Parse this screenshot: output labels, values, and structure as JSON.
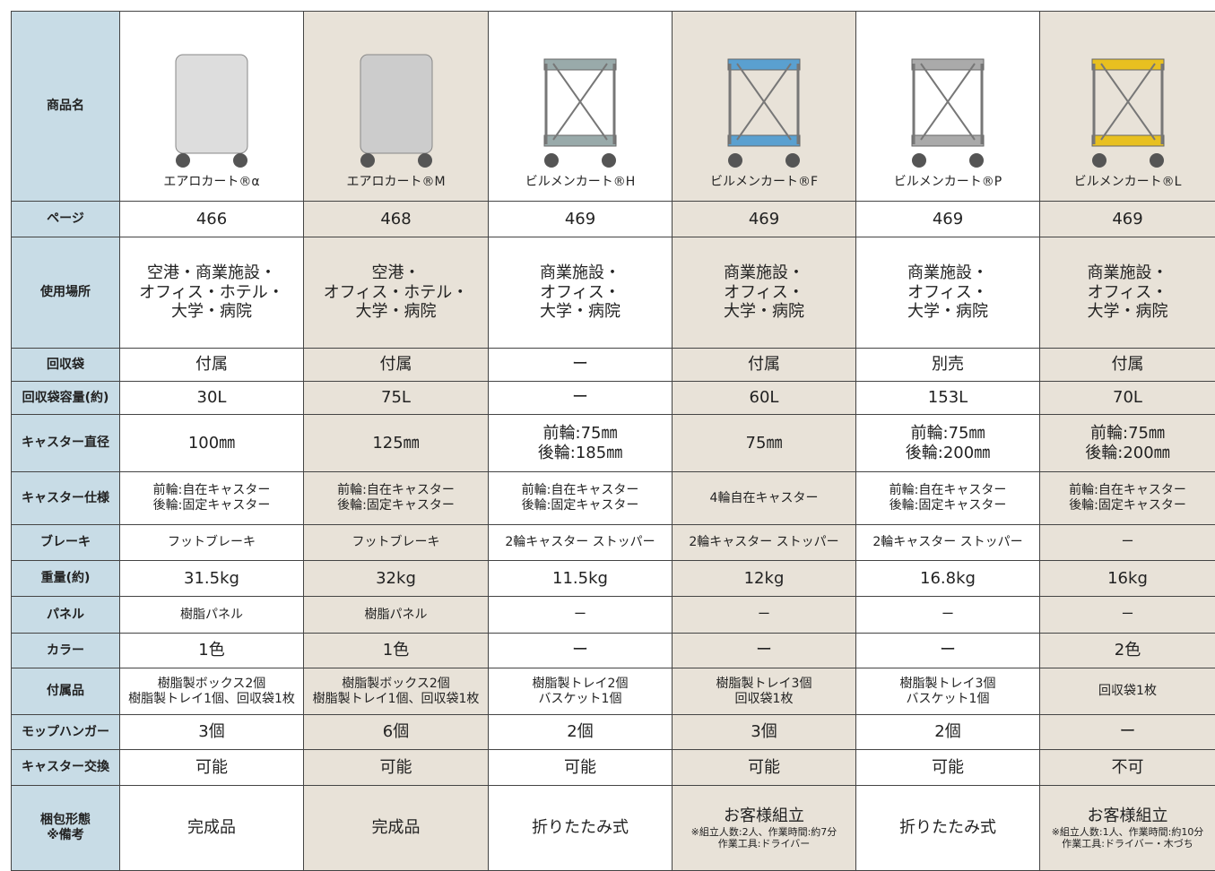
{
  "header": {
    "label": "商品名",
    "products": [
      "エアロカート®α",
      "エアロカート®M",
      "ビルメンカート®H",
      "ビルメンカート®F",
      "ビルメンカート®P",
      "ビルメンカート®L"
    ]
  },
  "rows": [
    {
      "label": "ページ",
      "cells": [
        "466",
        "468",
        "469",
        "469",
        "469",
        "469"
      ]
    },
    {
      "label": "使用場所",
      "cells": [
        [
          "空港・商業施設・",
          "オフィス・ホテル・",
          "大学・病院"
        ],
        [
          "空港・",
          "オフィス・ホテル・",
          "大学・病院"
        ],
        [
          "商業施設・",
          "オフィス・",
          "大学・病院"
        ],
        [
          "商業施設・",
          "オフィス・",
          "大学・病院"
        ],
        [
          "商業施設・",
          "オフィス・",
          "大学・病院"
        ],
        [
          "商業施設・",
          "オフィス・",
          "大学・病院"
        ]
      ]
    },
    {
      "label": "回収袋",
      "cells": [
        "付属",
        "付属",
        "ー",
        "付属",
        "別売",
        "付属"
      ]
    },
    {
      "label": "回収袋容量(約)",
      "cells": [
        "30L",
        "75L",
        "ー",
        "60L",
        "153L",
        "70L"
      ]
    },
    {
      "label": "キャスター直径",
      "cells": [
        "100㎜",
        "125㎜",
        [
          "前輪:75㎜",
          "後輪:185㎜"
        ],
        "75㎜",
        [
          "前輪:75㎜",
          "後輪:200㎜"
        ],
        [
          "前輪:75㎜",
          "後輪:200㎜"
        ]
      ]
    },
    {
      "label": "キャスター仕様",
      "cells": [
        [
          "前輪:自在キャスター",
          "後輪:固定キャスター"
        ],
        [
          "前輪:自在キャスター",
          "後輪:固定キャスター"
        ],
        [
          "前輪:自在キャスター",
          "後輪:固定キャスター"
        ],
        "4輪自在キャスター",
        [
          "前輪:自在キャスター",
          "後輪:固定キャスター"
        ],
        [
          "前輪:自在キャスター",
          "後輪:固定キャスター"
        ]
      ]
    },
    {
      "label": "ブレーキ",
      "cells": [
        "フットブレーキ",
        "フットブレーキ",
        "2輪キャスター ストッパー",
        "2輪キャスター ストッパー",
        "2輪キャスター ストッパー",
        "ー"
      ]
    },
    {
      "label": "重量(約)",
      "cells": [
        "31.5kg",
        "32kg",
        "11.5kg",
        "12kg",
        "16.8kg",
        "16kg"
      ]
    },
    {
      "label": "パネル",
      "cells": [
        "樹脂パネル",
        "樹脂パネル",
        "ー",
        "ー",
        "ー",
        "ー"
      ]
    },
    {
      "label": "カラー",
      "cells": [
        "1色",
        "1色",
        "ー",
        "ー",
        "ー",
        "2色"
      ]
    },
    {
      "label": "付属品",
      "cells": [
        [
          "樹脂製ボックス2個",
          "樹脂製トレイ1個、回収袋1枚"
        ],
        [
          "樹脂製ボックス2個",
          "樹脂製トレイ1個、回収袋1枚"
        ],
        [
          "樹脂製トレイ2個",
          "バスケット1個"
        ],
        [
          "樹脂製トレイ3個",
          "回収袋1枚"
        ],
        [
          "樹脂製トレイ3個",
          "バスケット1個"
        ],
        "回収袋1枚"
      ]
    },
    {
      "label": "モップハンガー",
      "cells": [
        "3個",
        "6個",
        "2個",
        "3個",
        "2個",
        "ー"
      ]
    },
    {
      "label": "キャスター交換",
      "cells": [
        "可能",
        "可能",
        "可能",
        "可能",
        "可能",
        "不可"
      ]
    },
    {
      "label": [
        "梱包形態",
        "※備考"
      ],
      "cells": [
        "完成品",
        "完成品",
        "折りたたみ式",
        {
          "main": "お客様組立",
          "note": [
            "※組立人数:2人、作業時間:約7分",
            "作業工具:ドライバー"
          ]
        },
        "折りたたみ式",
        {
          "main": "お客様組立",
          "note": [
            "※組立人数:1人、作業時間:約10分",
            "作業工具:ドライバー・木づち"
          ]
        }
      ]
    }
  ]
}
